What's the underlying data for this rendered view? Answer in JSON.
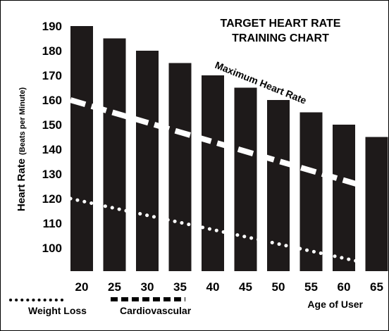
{
  "chart_data": {
    "type": "bar",
    "title": [
      "TARGET HEART RATE",
      "TRAINING CHART"
    ],
    "ylabel": "Heart Rate",
    "ylabel_unit": "(Beats per Minute)",
    "xlabel": "Age of User",
    "categories": [
      "20",
      "25",
      "30",
      "35",
      "40",
      "45",
      "50",
      "55",
      "60",
      "65"
    ],
    "y_ticks": [
      "190",
      "180",
      "170",
      "160",
      "150",
      "140",
      "130",
      "120",
      "110",
      "100"
    ],
    "ylim": [
      90,
      190
    ],
    "grid": false,
    "legend_position": "bottom-left",
    "series": [
      {
        "name": "Maximum Heart Rate",
        "style": "bars",
        "values": [
          190,
          185,
          180,
          175,
          170,
          165,
          160,
          155,
          150,
          145
        ]
      },
      {
        "name": "Cardiovascular",
        "style": "dashed-line",
        "values": [
          160,
          157,
          153,
          149,
          145,
          141,
          137,
          133,
          129,
          125
        ]
      },
      {
        "name": "Weight Loss",
        "style": "dotted-line",
        "values": [
          120,
          117,
          114,
          111,
          108,
          105,
          102,
          99,
          96,
          94
        ]
      }
    ],
    "annotation": "Maximum Heart Rate",
    "legend": {
      "weight_loss": "Weight Loss",
      "cardiovascular": "Cardiovascular"
    },
    "colors": {
      "bars": "#1e1a1a",
      "background": "#ffffff",
      "lines": "#ffffff"
    }
  }
}
